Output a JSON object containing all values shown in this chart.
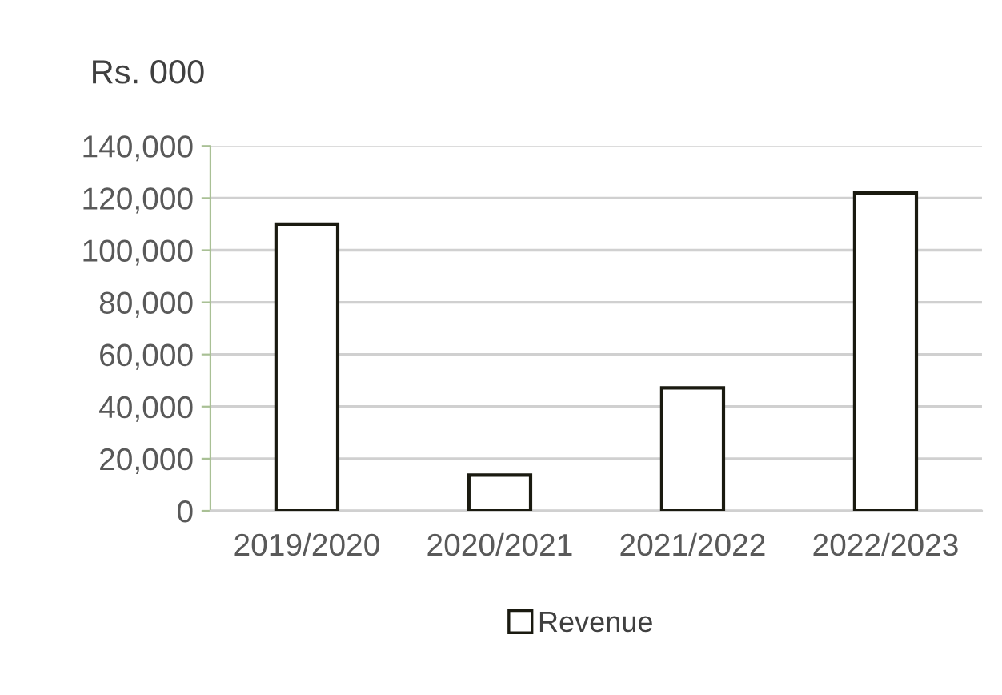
{
  "chart_data": {
    "type": "bar",
    "ylabel": "Rs. 000",
    "categories": [
      "2019/2020",
      "2020/2021",
      "2021/2022",
      "2022/2023"
    ],
    "series": [
      {
        "name": "Revenue",
        "color": "#ffffff",
        "values": [
          110000,
          13700,
          47200,
          122000
        ]
      }
    ],
    "ylim": [
      0,
      140000
    ],
    "yticks": [
      {
        "value": 0,
        "label": "0"
      },
      {
        "value": 20000,
        "label": "20,000"
      },
      {
        "value": 40000,
        "label": "40,000"
      },
      {
        "value": 60000,
        "label": "60,000"
      },
      {
        "value": 80000,
        "label": "80,000"
      },
      {
        "value": 100000,
        "label": "100,000"
      },
      {
        "value": 120000,
        "label": "120,000"
      },
      {
        "value": 140000,
        "label": "140,000"
      }
    ],
    "grid": "y",
    "legend": "bottom"
  }
}
